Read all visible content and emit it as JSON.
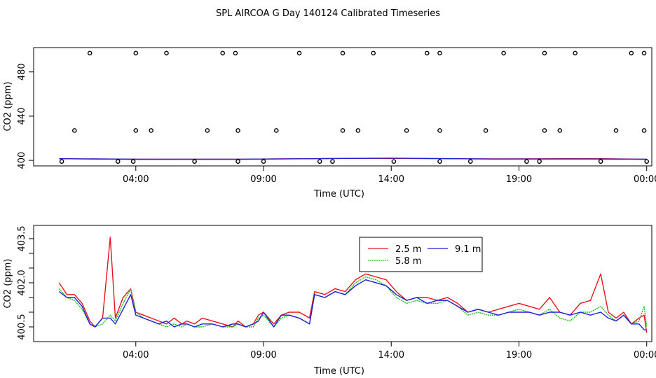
{
  "page": {
    "title": "SPL AIRCOA G  Day 140124  Calibrated Timeseries"
  },
  "colors": {
    "s25": "#e8141a",
    "s58": "#1ebf1e",
    "s91": "#1f1fd9",
    "axis": "#000000"
  },
  "chart_data": [
    {
      "type": "scatter+line",
      "title": "",
      "xlabel": "Time (UTC)",
      "ylabel": "CO2 (ppm)",
      "xlim": [
        0.0,
        24.2
      ],
      "ylim": [
        395,
        502
      ],
      "xticks": [
        {
          "value": 4,
          "label": "04:00"
        },
        {
          "value": 9,
          "label": "09:00"
        },
        {
          "value": 14,
          "label": "14:00"
        },
        {
          "value": 19,
          "label": "19:00"
        },
        {
          "value": 24,
          "label": "00:00"
        }
      ],
      "yticks": [
        {
          "value": 400,
          "label": "400"
        },
        {
          "value": 440,
          "label": "440"
        },
        {
          "value": 480,
          "label": "480"
        }
      ],
      "points": {
        "name": "flagged/cal samples",
        "x": [
          2.2,
          4.0,
          5.2,
          7.4,
          7.9,
          10.4,
          12.1,
          13.3,
          15.4,
          15.9,
          18.4,
          20.0,
          21.2,
          23.4,
          23.9,
          1.6,
          4.0,
          4.6,
          6.8,
          8.0,
          9.5,
          12.1,
          12.7,
          14.6,
          15.9,
          17.7,
          20.0,
          20.6,
          22.8,
          23.9,
          1.1,
          3.3,
          3.9,
          6.3,
          8.0,
          9.0,
          11.2,
          11.7,
          14.1,
          15.9,
          17.1,
          19.3,
          19.8,
          22.2,
          24.0
        ],
        "y": [
          497,
          497,
          497,
          497,
          497,
          497,
          497,
          497,
          497,
          497,
          497,
          497,
          497,
          497,
          497,
          427,
          427,
          427,
          427,
          427,
          427,
          427,
          427,
          427,
          427,
          427,
          427,
          427,
          427,
          427,
          399,
          399,
          399,
          399,
          399,
          399,
          399,
          399,
          399,
          399,
          399,
          399,
          399,
          399,
          399
        ]
      },
      "series": [
        {
          "name": "2.5 m",
          "color": "#e8141a",
          "x": [
            1,
            4,
            8,
            12,
            14,
            18,
            22,
            24
          ],
          "values": [
            401.5,
            401.0,
            401.1,
            401.8,
            401.8,
            401.3,
            401.6,
            401.0
          ]
        },
        {
          "name": "9.1 m",
          "color": "#1f1fd9",
          "x": [
            1,
            4,
            8,
            12,
            14,
            18,
            22,
            24
          ],
          "values": [
            401.5,
            401.0,
            401.0,
            401.7,
            402.0,
            401.2,
            401.2,
            401.0
          ]
        }
      ]
    },
    {
      "type": "line",
      "title": "",
      "xlabel": "Time (UTC)",
      "ylabel": "CO2 (ppm)",
      "xlim": [
        0.0,
        24.2
      ],
      "ylim": [
        400.0,
        403.95
      ],
      "xticks": [
        {
          "value": 4,
          "label": "04:00"
        },
        {
          "value": 9,
          "label": "09:00"
        },
        {
          "value": 14,
          "label": "14:00"
        },
        {
          "value": 19,
          "label": "19:00"
        },
        {
          "value": 24,
          "label": "00:00"
        }
      ],
      "yticks": [
        {
          "value": 400.5,
          "label": "400.5"
        },
        {
          "value": 401.0,
          "label": ""
        },
        {
          "value": 401.5,
          "label": ""
        },
        {
          "value": 402.0,
          "label": "402.0"
        },
        {
          "value": 402.5,
          "label": ""
        },
        {
          "value": 403.0,
          "label": ""
        },
        {
          "value": 403.5,
          "label": "403.5"
        }
      ],
      "legend": {
        "position": "top-center",
        "entries": [
          {
            "name": "2.5 m",
            "color": "#e8141a"
          },
          {
            "name": "9.1 m",
            "color": "#1f1fd9"
          },
          {
            "name": "5.8 m",
            "color": "#1ebf1e"
          }
        ]
      },
      "series": [
        {
          "name": "2.5 m",
          "color": "#e8141a",
          "x": [
            1.0,
            1.3,
            1.6,
            1.9,
            2.2,
            2.4,
            2.7,
            3.0,
            3.2,
            3.5,
            3.8,
            4.0,
            4.3,
            4.6,
            4.9,
            5.2,
            5.5,
            5.8,
            6.0,
            6.3,
            6.6,
            7.0,
            7.4,
            7.8,
            8.0,
            8.3,
            8.6,
            8.8,
            9.0,
            9.4,
            9.7,
            10.0,
            10.4,
            10.8,
            11.0,
            11.4,
            11.8,
            12.2,
            12.6,
            13.0,
            13.4,
            13.8,
            14.2,
            14.6,
            15.0,
            15.4,
            15.8,
            16.2,
            16.6,
            17.0,
            17.4,
            17.8,
            18.2,
            18.6,
            19.0,
            19.4,
            19.8,
            20.2,
            20.6,
            21.0,
            21.4,
            21.8,
            22.2,
            22.5,
            22.8,
            23.1,
            23.4,
            23.7,
            23.9,
            24.0
          ],
          "values": [
            402.0,
            401.6,
            401.6,
            401.3,
            400.7,
            400.5,
            400.8,
            403.55,
            400.8,
            401.5,
            401.8,
            401.0,
            400.9,
            400.8,
            400.7,
            400.6,
            400.8,
            400.6,
            400.7,
            400.6,
            400.8,
            400.7,
            400.6,
            400.5,
            400.7,
            400.5,
            400.6,
            400.9,
            401.0,
            400.6,
            400.9,
            401.0,
            401.0,
            400.8,
            401.7,
            401.6,
            401.8,
            401.7,
            402.1,
            402.3,
            402.2,
            402.1,
            401.7,
            401.4,
            401.5,
            401.5,
            401.4,
            401.5,
            401.3,
            401.0,
            401.1,
            401.0,
            401.1,
            401.2,
            401.3,
            401.2,
            401.1,
            401.5,
            401.0,
            400.9,
            401.3,
            401.4,
            402.3,
            401.0,
            400.8,
            401.0,
            400.6,
            400.8,
            400.9,
            400.3
          ]
        },
        {
          "name": "5.8 m",
          "color": "#1ebf1e",
          "x": [
            1.0,
            1.3,
            1.6,
            1.9,
            2.2,
            2.4,
            2.7,
            3.0,
            3.2,
            3.5,
            3.8,
            4.0,
            4.3,
            4.6,
            4.9,
            5.2,
            5.5,
            5.8,
            6.0,
            6.3,
            6.6,
            7.0,
            7.4,
            7.8,
            8.0,
            8.3,
            8.6,
            8.8,
            9.0,
            9.4,
            9.7,
            10.0,
            10.4,
            10.8,
            11.0,
            11.4,
            11.8,
            12.2,
            12.6,
            13.0,
            13.4,
            13.8,
            14.2,
            14.6,
            15.0,
            15.4,
            15.8,
            16.2,
            16.6,
            17.0,
            17.4,
            17.8,
            18.2,
            18.6,
            19.0,
            19.4,
            19.8,
            20.2,
            20.6,
            21.0,
            21.4,
            21.8,
            22.2,
            22.5,
            22.8,
            23.1,
            23.4,
            23.7,
            23.9,
            24.0
          ],
          "values": [
            401.8,
            401.5,
            401.4,
            401.1,
            400.6,
            400.5,
            400.6,
            400.9,
            400.7,
            401.3,
            401.8,
            401.0,
            400.8,
            400.7,
            400.6,
            400.5,
            400.6,
            400.5,
            400.6,
            400.5,
            400.5,
            400.6,
            400.5,
            400.5,
            400.6,
            400.5,
            400.5,
            400.8,
            400.9,
            400.5,
            400.8,
            400.9,
            400.8,
            400.6,
            401.6,
            401.5,
            401.7,
            401.6,
            402.0,
            402.2,
            402.1,
            401.9,
            401.5,
            401.3,
            401.4,
            401.3,
            401.3,
            401.4,
            401.2,
            400.9,
            401.0,
            400.9,
            400.9,
            401.0,
            401.1,
            401.0,
            400.9,
            401.1,
            400.8,
            400.7,
            401.0,
            401.0,
            401.2,
            400.9,
            400.7,
            400.9,
            400.6,
            400.7,
            401.2,
            400.5
          ]
        },
        {
          "name": "9.1 m",
          "color": "#1f1fd9",
          "x": [
            1.0,
            1.3,
            1.6,
            1.9,
            2.2,
            2.4,
            2.7,
            3.0,
            3.2,
            3.5,
            3.8,
            4.0,
            4.3,
            4.6,
            4.9,
            5.2,
            5.5,
            5.8,
            6.0,
            6.3,
            6.6,
            7.0,
            7.4,
            7.8,
            8.0,
            8.3,
            8.6,
            8.8,
            9.0,
            9.4,
            9.7,
            10.0,
            10.4,
            10.8,
            11.0,
            11.4,
            11.8,
            12.2,
            12.6,
            13.0,
            13.4,
            13.8,
            14.2,
            14.6,
            15.0,
            15.4,
            15.8,
            16.2,
            16.6,
            17.0,
            17.4,
            17.8,
            18.2,
            18.6,
            19.0,
            19.4,
            19.8,
            20.2,
            20.6,
            21.0,
            21.4,
            21.8,
            22.2,
            22.5,
            22.8,
            23.1,
            23.4,
            23.7,
            23.9,
            24.0
          ],
          "values": [
            401.7,
            401.5,
            401.5,
            401.2,
            400.6,
            400.5,
            400.8,
            400.8,
            400.6,
            401.1,
            401.6,
            400.9,
            400.8,
            400.7,
            400.6,
            400.7,
            400.5,
            400.6,
            400.6,
            400.5,
            400.6,
            400.6,
            400.5,
            400.6,
            400.6,
            400.5,
            400.6,
            400.7,
            401.0,
            400.5,
            400.9,
            400.9,
            400.8,
            400.6,
            401.6,
            401.5,
            401.7,
            401.6,
            401.9,
            402.1,
            402.0,
            401.9,
            401.6,
            401.4,
            401.5,
            401.3,
            401.4,
            401.4,
            401.2,
            401.0,
            401.1,
            401.0,
            400.9,
            401.0,
            401.0,
            401.0,
            400.9,
            401.0,
            401.0,
            400.9,
            401.0,
            400.9,
            401.0,
            400.8,
            400.7,
            400.9,
            400.6,
            400.6,
            400.4,
            400.4
          ]
        }
      ]
    }
  ]
}
